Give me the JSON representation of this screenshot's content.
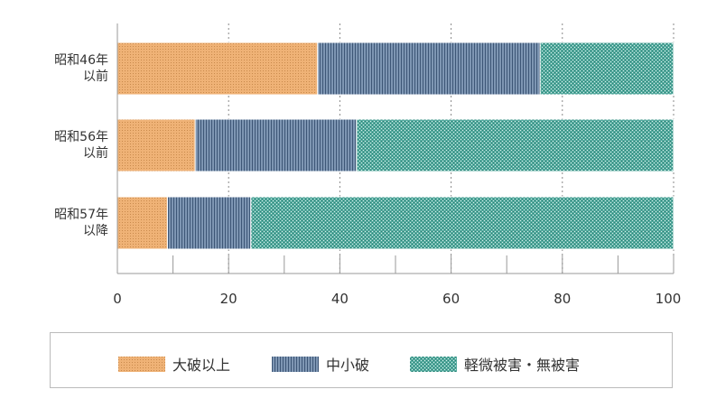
{
  "chart_data": {
    "type": "bar",
    "orientation": "horizontal",
    "stacked": true,
    "categories": [
      "昭和46年\n以前",
      "昭和56年\n以前",
      "昭和57年\n以降"
    ],
    "series": [
      {
        "name": "大破以上",
        "values": [
          36,
          14,
          9
        ],
        "color": "#e9a560"
      },
      {
        "name": "中小破",
        "values": [
          40,
          29,
          15
        ],
        "color": "#5d7898"
      },
      {
        "name": "軽微被害・無被害",
        "values": [
          24,
          57,
          76
        ],
        "color": "#3f9a8e"
      }
    ],
    "xlim": [
      0,
      100
    ],
    "xticks": [
      "0",
      "20",
      "40",
      "60",
      "80",
      "100"
    ],
    "grid": "vertical-dotted",
    "legend": "bottom"
  }
}
